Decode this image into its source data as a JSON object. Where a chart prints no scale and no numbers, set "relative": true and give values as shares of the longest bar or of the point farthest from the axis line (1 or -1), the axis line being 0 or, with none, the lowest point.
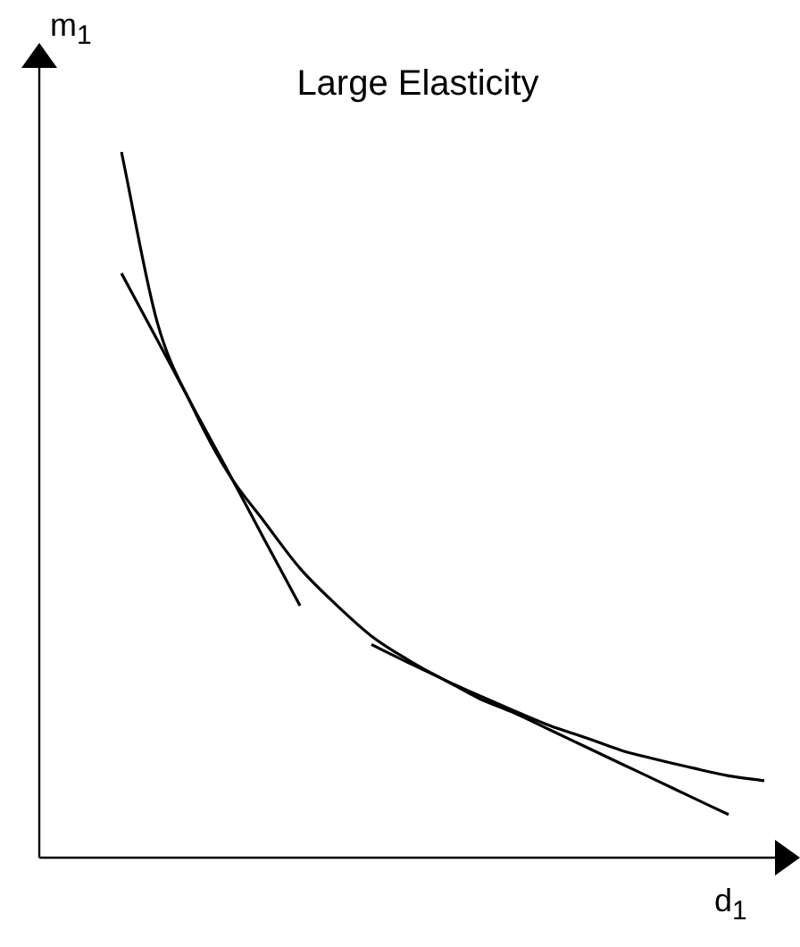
{
  "chart_data": {
    "type": "line",
    "title": "Large Elasticity",
    "xlabel": "d$_{1}$",
    "ylabel": "m$_{1}$",
    "relative": true,
    "categories": [
      null,
      null,
      null,
      null,
      null,
      null,
      null,
      null,
      null,
      null,
      null,
      null,
      null,
      null,
      null,
      null,
      null,
      null,
      null
    ],
    "tick_labels": false,
    "grid": false,
    "legend": false,
    "marker": "none",
    "line_style": "solid",
    "series": [
      {
        "color": "#000000",
        "values": [
          1.0,
          0.759,
          0.638,
          0.544,
          0.476,
          0.41,
          0.359,
          0.314,
          0.281,
          0.253,
          0.23,
          0.208,
          0.187,
          0.17,
          0.152,
          0.139,
          0.127,
          0.116,
          0.109
        ]
      },
      {
        "color": "#000000",
        "values": [
          0.828,
          0.734,
          0.639,
          0.546,
          0.451,
          0.357,
          null,
          null,
          null,
          null,
          null,
          null,
          null,
          null,
          null,
          null,
          null,
          null,
          null
        ]
      },
      {
        "color": "#000000",
        "values": [
          null,
          null,
          null,
          null,
          null,
          null,
          null,
          0.302,
          0.277,
          0.253,
          0.226,
          0.205,
          0.181,
          0.157,
          0.133,
          0.109,
          0.085,
          0.061,
          null
        ]
      }
    ]
  }
}
